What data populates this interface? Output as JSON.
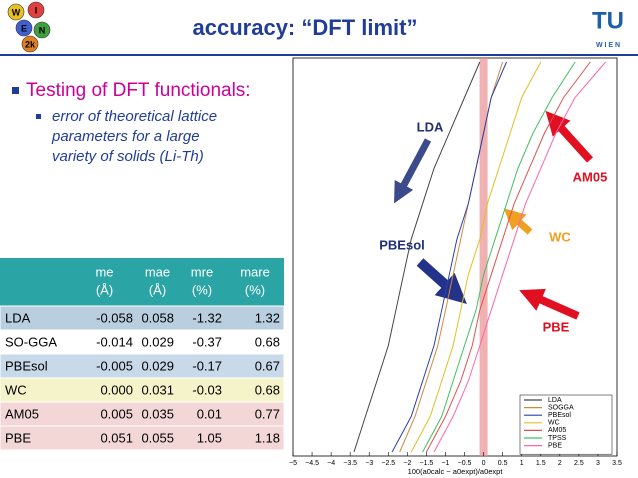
{
  "header": {
    "title": "accuracy: “DFT limit”",
    "logo_left": [
      "W",
      "I",
      "E",
      "N",
      "2k"
    ],
    "logo_right": [
      "TU",
      "W I E N"
    ]
  },
  "bullets": {
    "main": "Testing of DFT functionals:",
    "sub": [
      "error of theoretical lattice",
      "parameters for a large",
      "variety of solids (Li-Th)"
    ]
  },
  "table": {
    "columns": [
      [
        "me",
        "(Å)"
      ],
      [
        "mae",
        "(Å)"
      ],
      [
        "mre",
        "(%)"
      ],
      [
        "mare",
        "(%)"
      ]
    ],
    "rows": [
      [
        "LDA",
        "-0.058",
        "0.058",
        "-1.32",
        "1.32"
      ],
      [
        "SO-GGA",
        "-0.014",
        "0.029",
        "-0.37",
        "0.68"
      ],
      [
        "PBEsol",
        "-0.005",
        "0.029",
        "-0.17",
        "0.67"
      ],
      [
        "WC",
        "0.000",
        "0.031",
        "-0.03",
        "0.68"
      ],
      [
        "AM05",
        "0.005",
        "0.035",
        "0.01",
        "0.77"
      ],
      [
        "PBE",
        "0.051",
        "0.055",
        "1.05",
        "1.18"
      ]
    ],
    "header_color": "#2ba4a6",
    "row_colors": [
      "#b9cfe0",
      "#ffffff",
      "#c8d9ea",
      "#f5f3c9",
      "#f3d7d7",
      "#f3d7d7"
    ]
  },
  "chart_data": {
    "type": "line",
    "x_label": "100(a0calc − a0expt)/a0expt",
    "xlim": [
      -5,
      3.5
    ],
    "xticks": [
      {
        "value": -5,
        "label": "−5"
      },
      {
        "value": -4.5,
        "label": "−4.5"
      },
      {
        "value": -4,
        "label": "−4"
      },
      {
        "value": -3.5,
        "label": "−3.5"
      },
      {
        "value": -3,
        "label": "−3"
      },
      {
        "value": -2.5,
        "label": "−2.5"
      },
      {
        "value": -2,
        "label": "−2"
      },
      {
        "value": -1.5,
        "label": "−1.5"
      },
      {
        "value": -1,
        "label": "−1"
      },
      {
        "value": -0.5,
        "label": "−0.5"
      },
      0,
      0.5,
      1,
      1.5,
      2,
      2.5,
      3,
      3.5
    ],
    "series": [
      {
        "name": "LDA",
        "color": "#444444",
        "values": [
          -3.4,
          -3.1,
          -2.8,
          -2.5,
          -2.3,
          -2.1,
          -1.9,
          -1.6,
          -1.3,
          -0.9,
          -0.5,
          -0.1
        ]
      },
      {
        "name": "SOGGA",
        "color": "#d08a3a",
        "values": [
          -2.2,
          -1.8,
          -1.5,
          -1.2,
          -1.0,
          -0.8,
          -0.6,
          -0.4,
          -0.2,
          0.0,
          0.2,
          0.5
        ]
      },
      {
        "name": "PBEsol",
        "color": "#2a3fb0",
        "values": [
          -2.4,
          -1.9,
          -1.6,
          -1.3,
          -1.1,
          -0.9,
          -0.7,
          -0.4,
          -0.2,
          0.0,
          0.2,
          0.6
        ]
      },
      {
        "name": "WC",
        "color": "#e0c020",
        "values": [
          -1.9,
          -1.4,
          -1.1,
          -0.8,
          -0.6,
          -0.4,
          -0.1,
          0.1,
          0.4,
          0.7,
          1.0,
          1.5
        ]
      },
      {
        "name": "AM05",
        "color": "#e05050",
        "values": [
          -1.5,
          -1.0,
          -0.6,
          -0.3,
          -0.1,
          0.2,
          0.5,
          0.8,
          1.2,
          1.6,
          2.1,
          2.8
        ]
      },
      {
        "name": "TPSS",
        "color": "#40c060",
        "values": [
          -1.6,
          -1.1,
          -0.8,
          -0.5,
          -0.2,
          0.0,
          0.3,
          0.6,
          0.9,
          1.3,
          1.8,
          2.4
        ]
      },
      {
        "name": "PBE",
        "color": "#ff66aa",
        "values": [
          -1.3,
          -0.8,
          -0.4,
          -0.1,
          0.2,
          0.5,
          0.8,
          1.1,
          1.5,
          1.9,
          2.4,
          3.2
        ]
      }
    ],
    "annotations": [
      {
        "text": "LDA",
        "color": "#1f2f7a"
      },
      {
        "text": "AM05",
        "color": "#e01020"
      },
      {
        "text": "WC",
        "color": "#f0a020"
      },
      {
        "text": "PBEsol",
        "color": "#1f2f7a"
      },
      {
        "text": "PBE",
        "color": "#e01020"
      }
    ],
    "legend": "lower right"
  }
}
